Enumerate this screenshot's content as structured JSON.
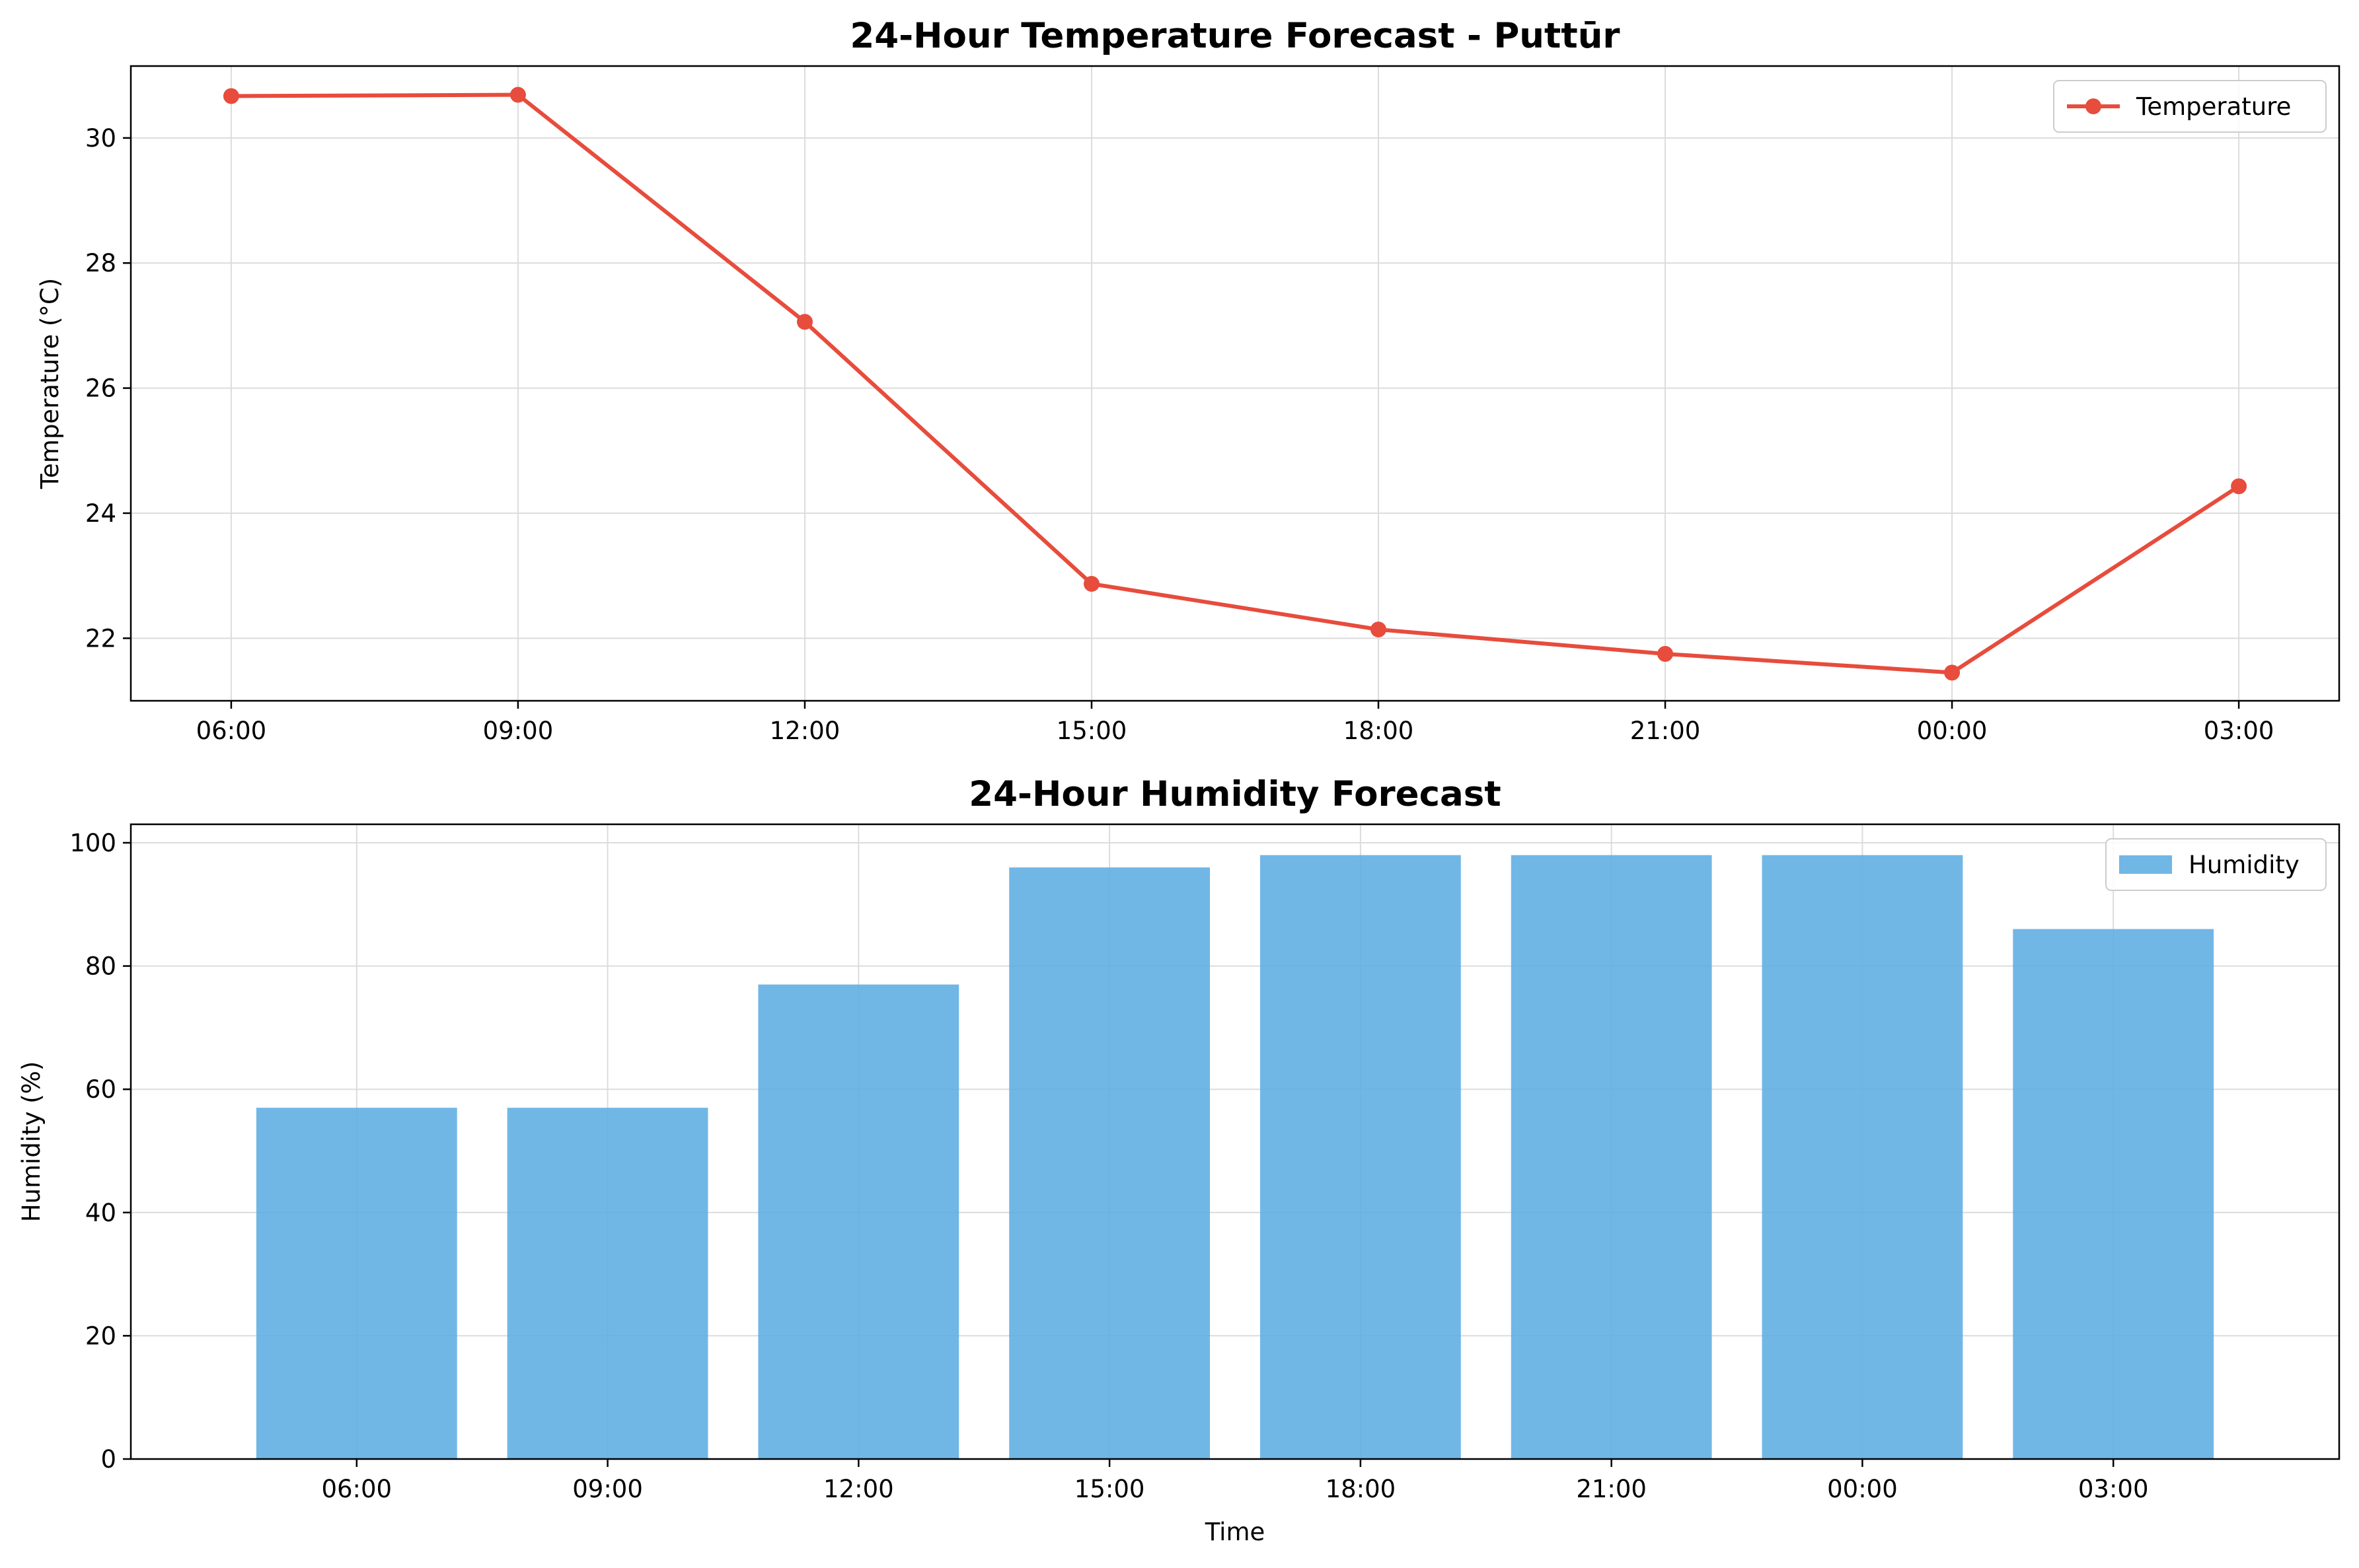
{
  "colors": {
    "temperature": "#e74c3c",
    "humidity": "#5dade2",
    "grid": "#dcdcdc",
    "axes": "#000000"
  },
  "chart_data": [
    {
      "type": "line",
      "title": "24-Hour Temperature Forecast - Puttūr",
      "xlabel": "",
      "ylabel": "Temperature (°C)",
      "categories": [
        "06:00",
        "09:00",
        "12:00",
        "15:00",
        "18:00",
        "21:00",
        "00:00",
        "03:00"
      ],
      "series": [
        {
          "name": "Temperature",
          "values": [
            30.67,
            30.69,
            27.06,
            22.87,
            22.14,
            21.75,
            21.45,
            24.43
          ]
        }
      ],
      "ylim": [
        21.0,
        31.15
      ],
      "yticks": [
        22,
        24,
        26,
        28,
        30
      ],
      "grid": true,
      "legend": "top-right"
    },
    {
      "type": "bar",
      "title": "24-Hour Humidity Forecast",
      "xlabel": "Time",
      "ylabel": "Humidity (%)",
      "categories": [
        "06:00",
        "09:00",
        "12:00",
        "15:00",
        "18:00",
        "21:00",
        "00:00",
        "03:00"
      ],
      "series": [
        {
          "name": "Humidity",
          "values": [
            57,
            57,
            77,
            96,
            98,
            98,
            98,
            86
          ]
        }
      ],
      "ylim": [
        0,
        103
      ],
      "yticks": [
        0,
        20,
        40,
        60,
        80,
        100
      ],
      "grid": true,
      "legend": "top-right"
    }
  ]
}
